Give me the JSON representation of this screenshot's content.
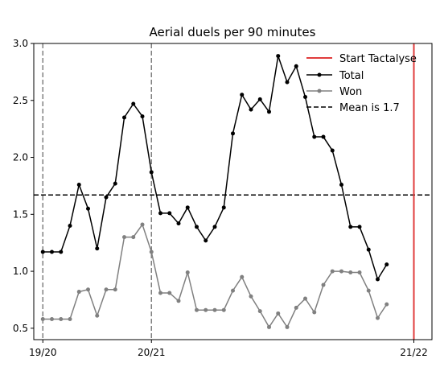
{
  "chart_data": {
    "type": "line",
    "title": "Aerial duels per 90 minutes",
    "xlabel": "",
    "ylabel": "",
    "ylim": [
      0.4,
      3.0
    ],
    "yticks": [
      "0.5",
      "1.0",
      "1.5",
      "2.0",
      "2.5",
      "3.0"
    ],
    "xticks": [
      {
        "label": "19/20",
        "x": 0
      },
      {
        "label": "20/21",
        "x": 12
      },
      {
        "label": "21/22",
        "x": 41
      }
    ],
    "grid": false,
    "legend_position": "top-right",
    "season_markers": [
      0,
      12
    ],
    "start_tactalyse": 41,
    "mean": 1.67,
    "series": [
      {
        "name": "Total",
        "color": "#000000",
        "values": [
          1.17,
          1.17,
          1.17,
          1.4,
          1.76,
          1.55,
          1.2,
          1.65,
          1.77,
          2.35,
          2.47,
          2.36,
          1.87,
          1.51,
          1.51,
          1.42,
          1.56,
          1.39,
          1.27,
          1.39,
          1.56,
          2.21,
          2.55,
          2.42,
          2.51,
          2.4,
          2.89,
          2.66,
          2.8,
          2.53,
          2.18,
          2.18,
          2.06,
          1.76,
          1.39,
          1.39,
          1.19,
          0.93,
          1.06
        ]
      },
      {
        "name": "Won",
        "color": "#808080",
        "values": [
          0.58,
          0.58,
          0.58,
          0.58,
          0.82,
          0.84,
          0.61,
          0.84,
          0.84,
          1.3,
          1.3,
          1.41,
          1.17,
          0.81,
          0.81,
          0.74,
          0.99,
          0.66,
          0.66,
          0.66,
          0.66,
          0.83,
          0.95,
          0.78,
          0.65,
          0.51,
          0.63,
          0.51,
          0.68,
          0.76,
          0.64,
          0.88,
          1.0,
          1.0,
          0.99,
          0.99,
          0.83,
          0.59,
          0.71
        ]
      }
    ],
    "legend": {
      "start_label": "Start Tactalyse",
      "total_label": "Total",
      "won_label": "Won",
      "mean_label": "Mean is 1.7"
    },
    "colors": {
      "start_line": "#e03c3c",
      "season_line": "#808080",
      "mean_line": "#000000",
      "frame": "#000000"
    }
  }
}
